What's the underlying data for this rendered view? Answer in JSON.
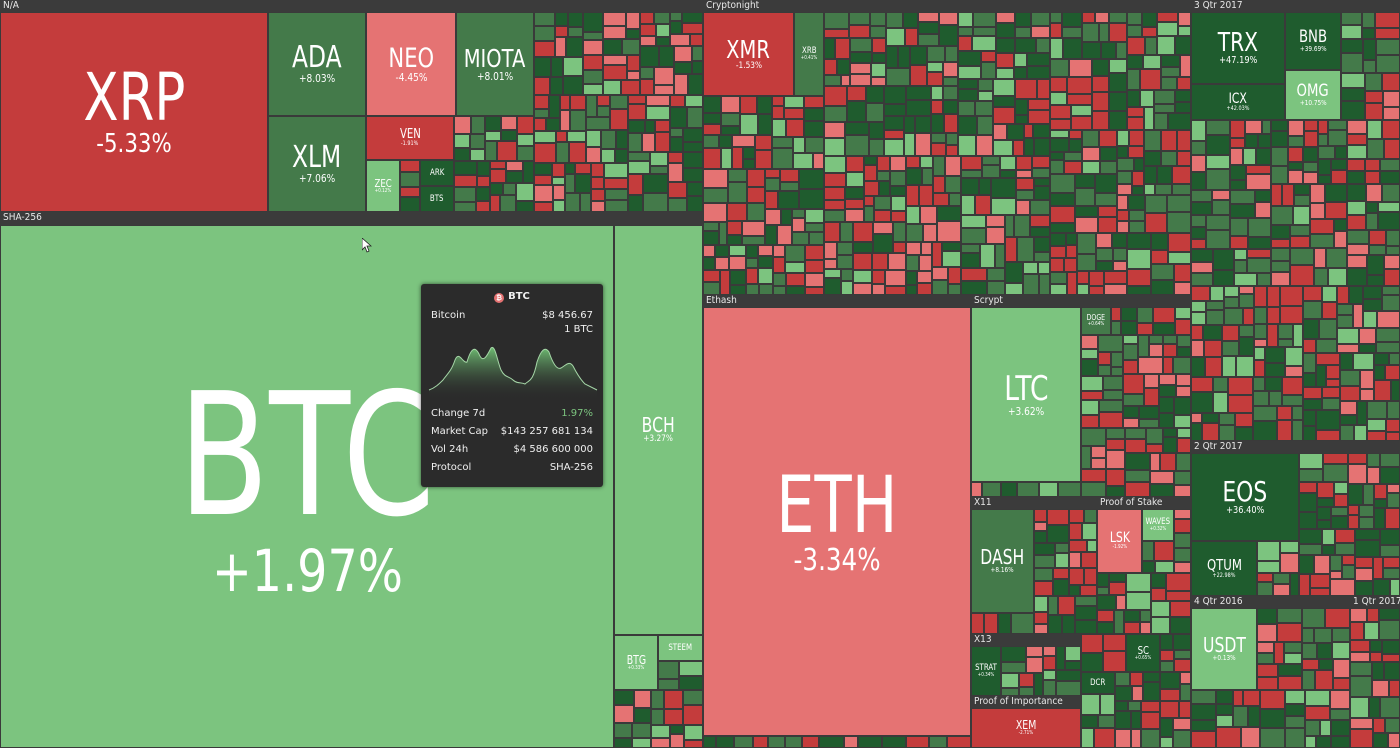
{
  "sections": {
    "na": "N/A",
    "cryptonight": "Cryptonight",
    "q3_2017": "3 Qtr 2017",
    "sha256": "SHA-256",
    "ethash": "Ethash",
    "scrypt": "Scrypt",
    "x11": "X11",
    "proof_of_stake": "Proof of Stake",
    "x13": "X13",
    "proof_of_importance": "Proof of Importance",
    "q2_2017": "2 Qtr 2017",
    "q4_2016": "4 Qtr 2016",
    "q1_2017": "1 Qtr 2017"
  },
  "coins": {
    "xrp": {
      "symbol": "XRP",
      "change": "-5.33%"
    },
    "ada": {
      "symbol": "ADA",
      "change": "+8.03%"
    },
    "neo": {
      "symbol": "NEO",
      "change": "-4.45%"
    },
    "miota": {
      "symbol": "MIOTA",
      "change": "+8.01%"
    },
    "xlm": {
      "symbol": "XLM",
      "change": "+7.06%"
    },
    "ven": {
      "symbol": "VEN",
      "change": "-1.91%"
    },
    "zec": {
      "symbol": "ZEC",
      "change": "+0.12%"
    },
    "ark": {
      "symbol": "ARK",
      "change": ""
    },
    "bts": {
      "symbol": "BTS",
      "change": ""
    },
    "xmr": {
      "symbol": "XMR",
      "change": "-1.53%"
    },
    "xrb": {
      "symbol": "XRB",
      "change": "+0.41%"
    },
    "trx": {
      "symbol": "TRX",
      "change": "+47.19%"
    },
    "bnb": {
      "symbol": "BNB",
      "change": "+39.69%"
    },
    "omg": {
      "symbol": "OMG",
      "change": "+10.75%"
    },
    "icx": {
      "symbol": "ICX",
      "change": "+42.03%"
    },
    "btc": {
      "symbol": "BTC",
      "change": "+1.97%"
    },
    "bch": {
      "symbol": "BCH",
      "change": "+3.27%"
    },
    "btg": {
      "symbol": "BTG",
      "change": "+0.33%"
    },
    "steem": {
      "symbol": "STEEM",
      "change": ""
    },
    "eth": {
      "symbol": "ETH",
      "change": "-3.34%"
    },
    "ltc": {
      "symbol": "LTC",
      "change": "+3.62%"
    },
    "doge": {
      "symbol": "DOGE",
      "change": "+0.64%"
    },
    "dash": {
      "symbol": "DASH",
      "change": "+8.16%"
    },
    "lsk": {
      "symbol": "LSK",
      "change": "-1.92%"
    },
    "waves": {
      "symbol": "WAVES",
      "change": "+0.32%"
    },
    "strat": {
      "symbol": "STRAT",
      "change": "+0.34%"
    },
    "sc": {
      "symbol": "SC",
      "change": "+0.65%"
    },
    "dcr": {
      "symbol": "DCR",
      "change": ""
    },
    "xem": {
      "symbol": "XEM",
      "change": "-2.71%"
    },
    "eos": {
      "symbol": "EOS",
      "change": "+36.40%"
    },
    "qtum": {
      "symbol": "QTUM",
      "change": "+22.98%"
    },
    "usdt": {
      "symbol": "USDT",
      "change": "+0.13%"
    }
  },
  "tooltip": {
    "symbol": "BTC",
    "coin_glyph": "₿",
    "name": "Bitcoin",
    "price": "$8 456.67",
    "unit": "1 BTC",
    "change_label": "Change 7d",
    "change_value": "1.97%",
    "mcap_label": "Market Cap",
    "mcap_value": "$143 257 681 134",
    "vol_label": "Vol 24h",
    "vol_value": "$4 586 600 000",
    "protocol_label": "Protocol",
    "protocol_value": "SHA-256"
  },
  "colors": {
    "strong_red": "#c43c3c",
    "red": "#e57373",
    "strong_green": "#1f5c2e",
    "green": "#447a4a",
    "light_green": "#7cc47f",
    "tooltip_bg": "#2b2b2b"
  },
  "icons": {
    "cursor": "arrow-cursor-icon",
    "coin": "bitcoin-icon"
  }
}
